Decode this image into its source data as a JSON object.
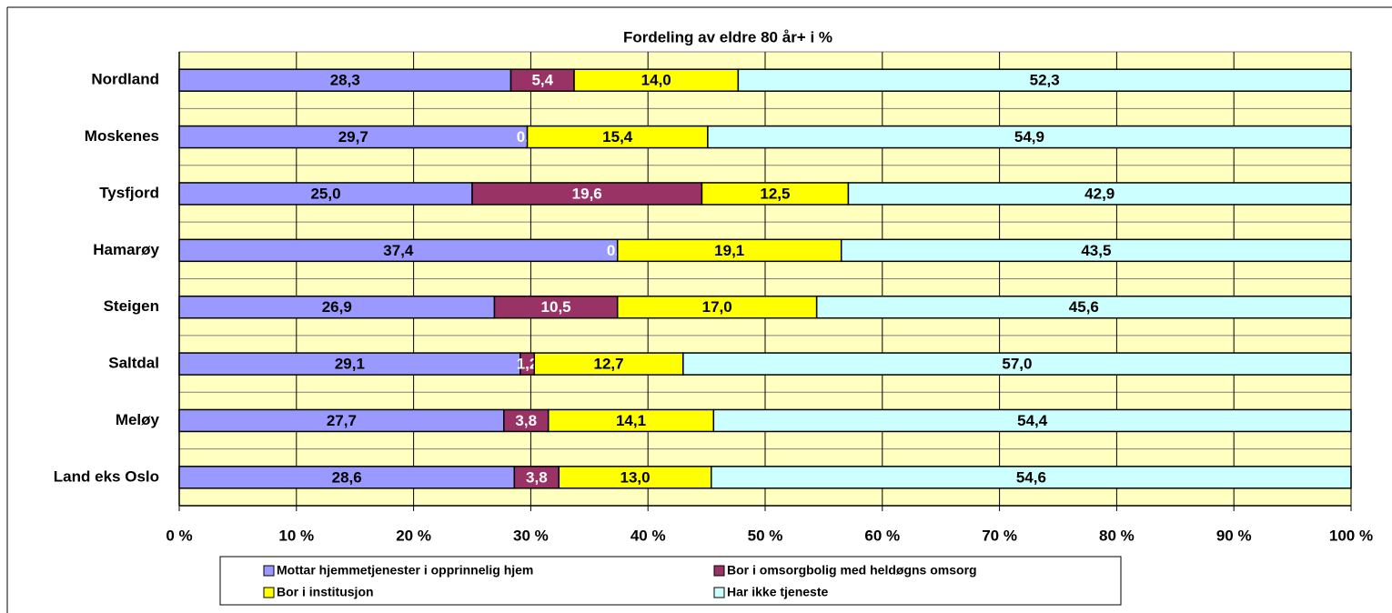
{
  "chart_data": {
    "type": "bar_stacked_horizontal",
    "title": "Fordeling av eldre 80 år+  i %",
    "categories": [
      "Nordland",
      "Moskenes",
      "Tysfjord",
      "Hamarøy",
      "Steigen",
      "Saltdal",
      "Meløy",
      "Land eks Oslo"
    ],
    "series": [
      {
        "name": "Mottar hjemmetjenester i opprinnelig hjem",
        "color": "#9999ff",
        "values": [
          28.3,
          29.7,
          25.0,
          37.4,
          26.9,
          29.1,
          27.7,
          28.6
        ],
        "value_labels": [
          "28,3",
          "29,7",
          "25,0",
          "37,4",
          "26,9",
          "29,1",
          "27,7",
          "28,6"
        ]
      },
      {
        "name": "Bor i omsorgbolig med heldøgns omsorg",
        "color": "#993366",
        "values": [
          5.4,
          0.0,
          19.6,
          0.0,
          10.5,
          1.2,
          3.8,
          3.8
        ],
        "value_labels": [
          "5,4",
          "0,0",
          "19,6",
          "0,0",
          "10,5",
          "1,2",
          "3,8",
          "3,8"
        ]
      },
      {
        "name": "Bor i institusjon",
        "color": "#ffff00",
        "values": [
          14.0,
          15.4,
          12.5,
          19.1,
          17.0,
          12.7,
          14.1,
          13.0
        ],
        "value_labels": [
          "14,0",
          "15,4",
          "12,5",
          "19,1",
          "17,0",
          "12,7",
          "14,1",
          "13,0"
        ]
      },
      {
        "name": "Har ikke tjeneste",
        "color": "#ccffff",
        "values": [
          52.3,
          54.9,
          42.9,
          43.5,
          45.6,
          57.0,
          54.4,
          54.6
        ],
        "value_labels": [
          "52,3",
          "54,9",
          "42,9",
          "43,5",
          "45,6",
          "57,0",
          "54,4",
          "54,6"
        ]
      }
    ],
    "xlim": [
      0,
      100
    ],
    "xticks": [
      {
        "value": 0,
        "label": "0 %"
      },
      {
        "value": 10,
        "label": "10 %"
      },
      {
        "value": 20,
        "label": "20 %"
      },
      {
        "value": 30,
        "label": "30 %"
      },
      {
        "value": 40,
        "label": "40 %"
      },
      {
        "value": 50,
        "label": "50 %"
      },
      {
        "value": 60,
        "label": "60 %"
      },
      {
        "value": 70,
        "label": "70 %"
      },
      {
        "value": 80,
        "label": "80 %"
      },
      {
        "value": 90,
        "label": "90 %"
      },
      {
        "value": 100,
        "label": "100 %"
      }
    ],
    "grid": true,
    "plot_background": "#ffffc0",
    "legend": "bottom"
  }
}
